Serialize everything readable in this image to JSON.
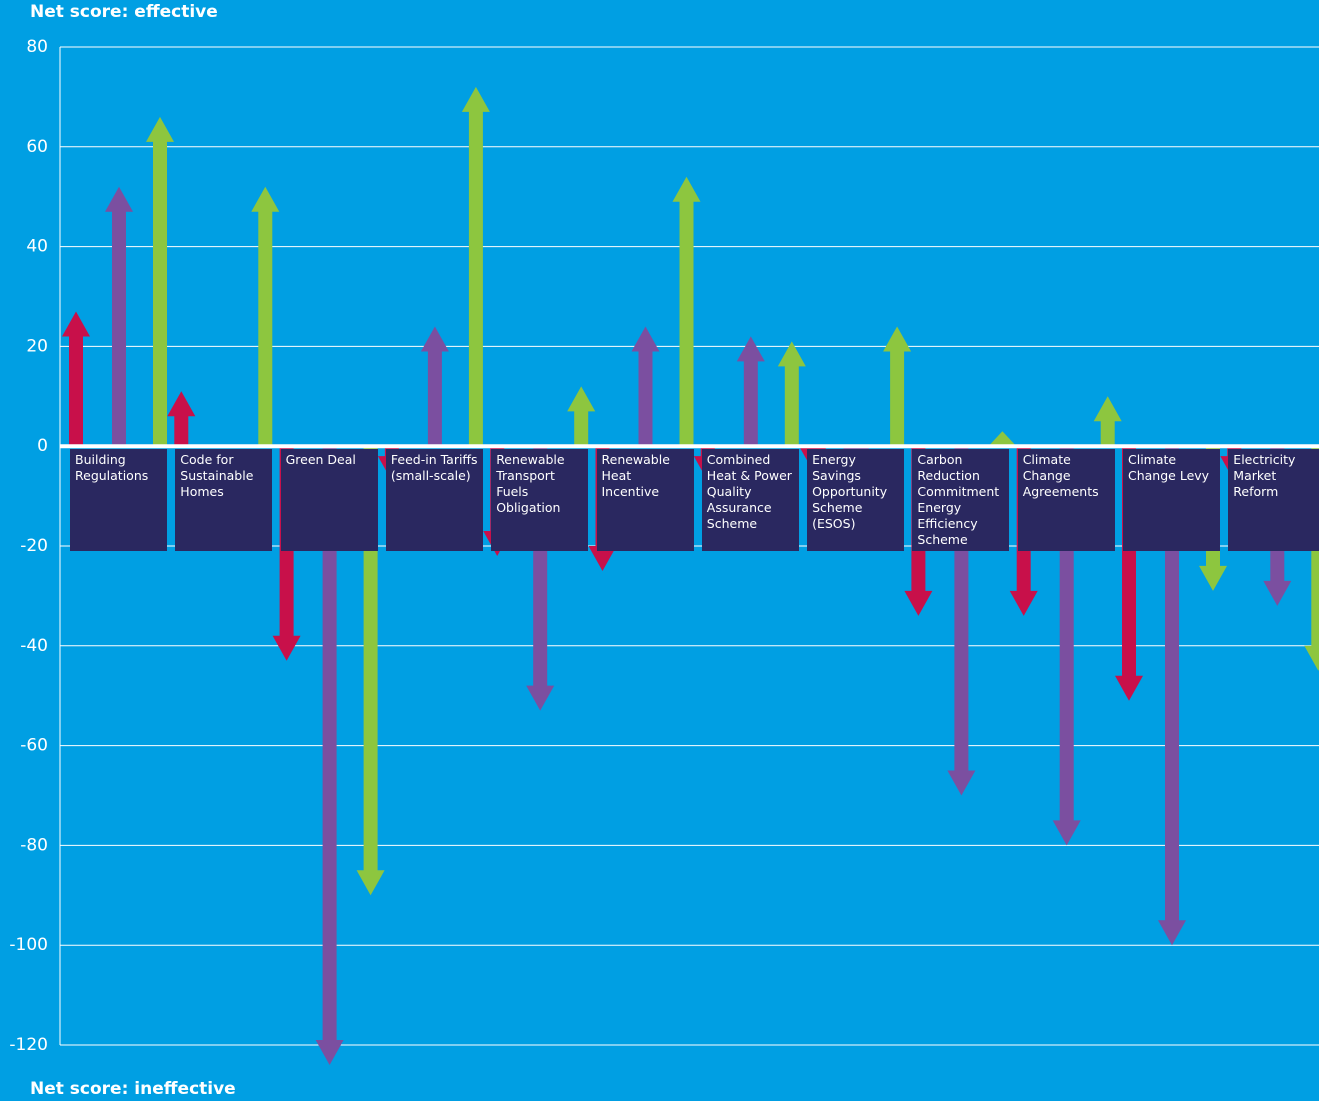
{
  "chart_data": {
    "type": "arrow",
    "title": "Net score: effective",
    "footer": "Net score: ineffective",
    "categories": [
      "Building Regulations",
      "Code for Sustainable Homes",
      "Green Deal",
      "Feed-in Tariffs (small-scale)",
      "Renewable Transport Fuels Obligation",
      "Renewable Heat Incentive",
      "Combined Heat & Power Quality Assurance Scheme",
      "Energy Savings Opportunity Scheme (ESOS)",
      "Carbon Reduction Commitment Energy Efficiency Scheme",
      "Climate Change Agreements",
      "Climate Change Levy",
      "Electricity Market Reform"
    ],
    "series": [
      {
        "color": "#c8104a",
        "values": [
          27,
          11,
          -43,
          -7,
          -22,
          -25,
          -7,
          -5,
          -34,
          -34,
          -51,
          -7
        ]
      },
      {
        "color": "#7b4fa0",
        "values": [
          52,
          0,
          -124,
          24,
          -53,
          24,
          22,
          -5,
          -70,
          -80,
          -100,
          -32
        ]
      },
      {
        "color": "#8dc63f",
        "values": [
          66,
          52,
          -90,
          72,
          12,
          54,
          21,
          24,
          3,
          10,
          -29,
          -45
        ]
      }
    ],
    "ylim": [
      -120,
      80
    ],
    "yticks": [
      -120,
      -100,
      -80,
      -60,
      -40,
      -20,
      0,
      20,
      40,
      60,
      80
    ],
    "grid": true
  }
}
